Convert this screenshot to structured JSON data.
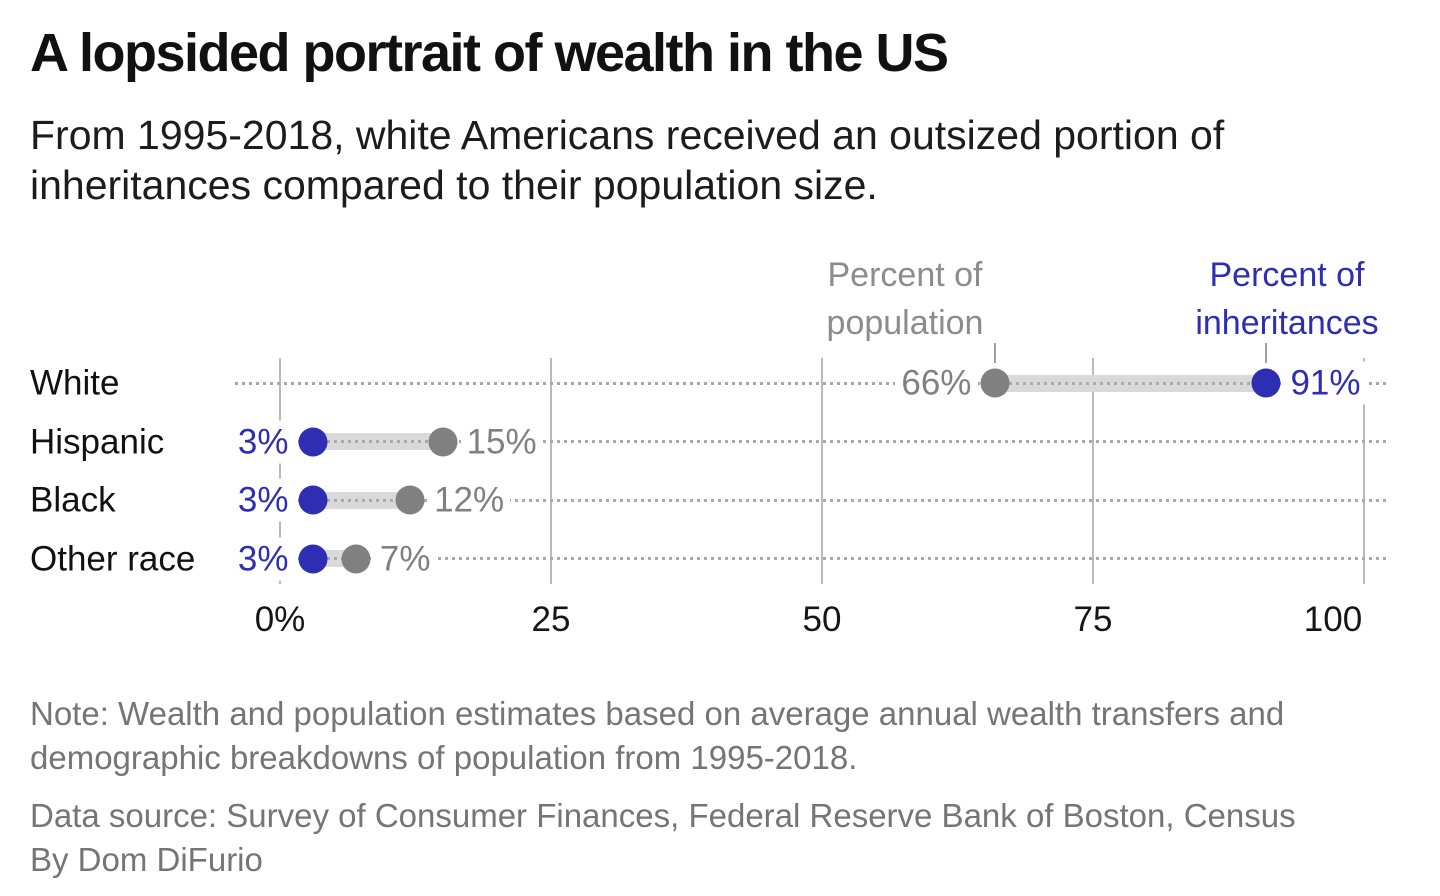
{
  "chart_data": {
    "type": "dumbbell",
    "title": "A lopsided portrait of wealth in the US",
    "subtitle": "From 1995-2018, white Americans received an outsized portion of inheritances compared to their population size.",
    "categories": [
      "White",
      "Hispanic",
      "Black",
      "Other race"
    ],
    "series": [
      {
        "name": "Percent of population",
        "color": "#808080",
        "values": [
          66,
          15,
          12,
          7
        ],
        "labels": [
          "66%",
          "15%",
          "12%",
          "7%"
        ]
      },
      {
        "name": "Percent of inheritances",
        "color": "#2e2eb2",
        "values": [
          91,
          3,
          3,
          3
        ],
        "labels": [
          "91%",
          "3%",
          "3%",
          "3%"
        ]
      }
    ],
    "x_axis": {
      "range": [
        0,
        100
      ],
      "tick_values": [
        0,
        25,
        50,
        75,
        100
      ],
      "tick_labels": [
        "0%",
        "25",
        "50",
        "75",
        "100"
      ]
    },
    "legend": {
      "population_label": "Percent of population",
      "inheritances_label": "Percent of inheritances"
    },
    "layout_hints": {
      "grid": "vertical solid gridlines, dotted horizontal row guides",
      "legend_position": "above chart, pointing at White-row dots"
    },
    "colors": {
      "population": "#808080",
      "inheritances": "#2e2eb2",
      "connector_band": "#d9d9d9",
      "gridline": "#b9b9b9",
      "row_guide": "#a9a9a9",
      "footer_text": "#757575"
    },
    "note": "Note: Wealth and population estimates based on average annual wealth transfers and demographic breakdowns of population from 1995-2018.",
    "source": "Data source: Survey of Consumer Finances, Federal Reserve Bank of Boston, Census",
    "byline": "By Dom DiFurio"
  }
}
